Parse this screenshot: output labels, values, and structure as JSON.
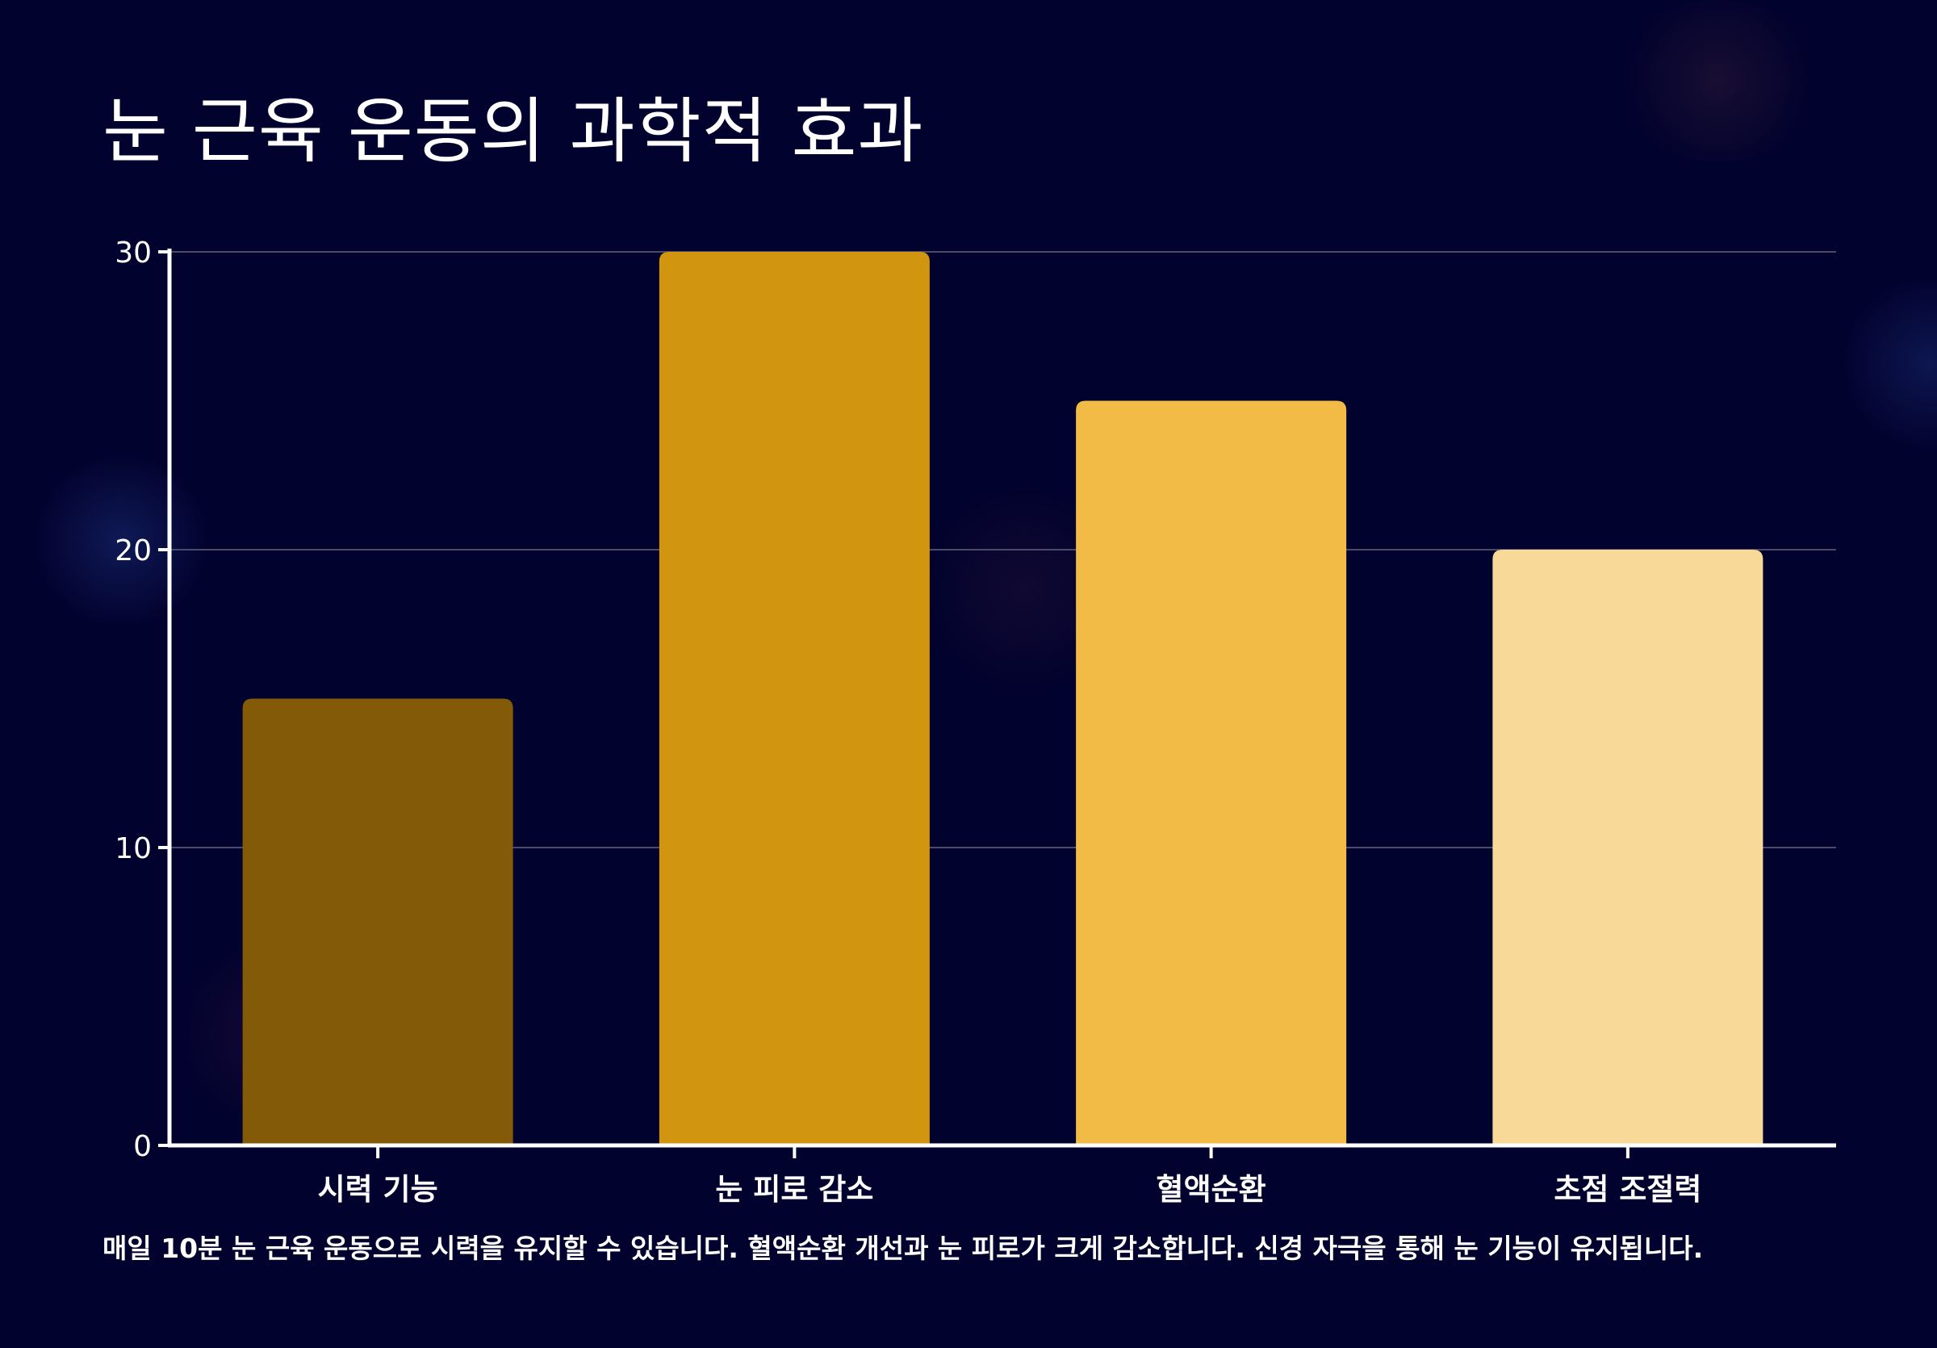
{
  "title": "눈 근육 운동의 과학적 효과",
  "caption": "매일 10분 눈 근육 운동으로 시력을 유지할 수 있습니다. 혈액순환 개선과 눈 피로가 크게 감소합니다. 신경 자극을 통해 눈 기능이 유지됩니다.",
  "colors": {
    "background": "#02022e",
    "grid": "#4a4a6a",
    "axis": "#ffffff",
    "bars": [
      "#825a08",
      "#d29510",
      "#f2bb45",
      "#f8d997"
    ]
  },
  "chart_data": {
    "type": "bar",
    "title": "눈 근육 운동의 과학적 효과",
    "categories": [
      "시력 기능",
      "눈 피로 감소",
      "혈액순환",
      "초점 조절력"
    ],
    "values": [
      15,
      30,
      25,
      20
    ],
    "xlabel": "",
    "ylabel": "",
    "ylim": [
      0,
      30
    ],
    "yticks": [
      0,
      10,
      20,
      30
    ],
    "grid": true,
    "legend": "none"
  }
}
